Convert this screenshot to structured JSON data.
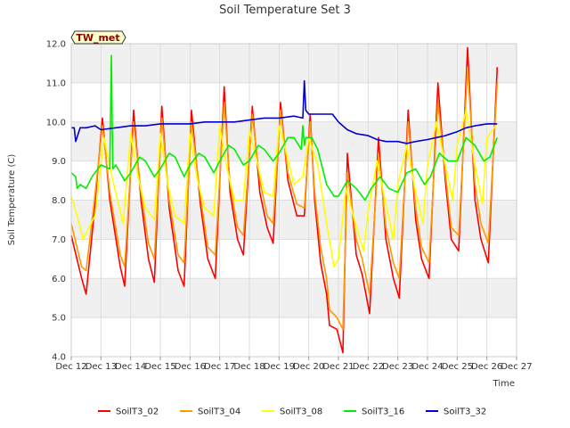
{
  "chart_data": {
    "type": "line",
    "title": "Soil Temperature Set 3",
    "xlabel": "Time",
    "ylabel": "Soil Temperature (C)",
    "tag": "TW_met",
    "ylim": [
      4.0,
      12.0
    ],
    "yticks": [
      "4.0",
      "5.0",
      "6.0",
      "7.0",
      "8.0",
      "9.0",
      "10.0",
      "11.0",
      "12.0"
    ],
    "xlim": [
      "Dec 12",
      "Dec 27"
    ],
    "xticks": [
      "Dec 12",
      "Dec 13",
      "Dec 14",
      "Dec 15",
      "Dec 16",
      "Dec 17",
      "Dec 18",
      "Dec 19",
      "Dec 20",
      "Dec 21",
      "Dec 22",
      "Dec 23",
      "Dec 24",
      "Dec 25",
      "Dec 26",
      "Dec 27"
    ],
    "grid": true,
    "legend_position": "bottom",
    "series": [
      {
        "name": "SoilT3_02",
        "color": "#ff0000",
        "x": [
          12.0,
          12.35,
          12.5,
          12.75,
          13.05,
          13.3,
          13.65,
          13.8,
          14.1,
          14.35,
          14.6,
          14.8,
          15.05,
          15.3,
          15.6,
          15.8,
          16.05,
          16.35,
          16.6,
          16.85,
          17.15,
          17.35,
          17.6,
          17.8,
          18.1,
          18.35,
          18.6,
          18.8,
          19.05,
          19.3,
          19.6,
          19.85,
          20.05,
          20.2,
          20.4,
          20.6,
          20.7,
          20.95,
          21.15,
          21.3,
          21.6,
          21.8,
          22.05,
          22.35,
          22.6,
          22.85,
          23.05,
          23.35,
          23.6,
          23.8,
          24.05,
          24.35,
          24.6,
          24.8,
          25.05,
          25.35,
          25.6,
          25.8,
          26.05,
          26.35
        ],
        "y": [
          7.1,
          6.0,
          5.6,
          7.5,
          10.1,
          8.0,
          6.3,
          5.8,
          10.3,
          8.0,
          6.5,
          5.9,
          10.4,
          7.8,
          6.2,
          5.8,
          10.3,
          7.9,
          6.5,
          6.0,
          10.9,
          8.2,
          7.0,
          6.6,
          10.4,
          8.2,
          7.3,
          6.9,
          10.5,
          8.5,
          7.6,
          7.6,
          10.2,
          8.0,
          6.4,
          5.6,
          4.8,
          4.7,
          4.1,
          9.2,
          6.6,
          6.1,
          5.1,
          9.6,
          7.0,
          6.0,
          5.5,
          10.3,
          7.5,
          6.5,
          6.0,
          11.0,
          8.5,
          7.0,
          6.7,
          11.9,
          8.0,
          7.0,
          6.4,
          11.4
        ]
      },
      {
        "name": "SoilT3_04",
        "color": "#ff9900",
        "x": [
          12.0,
          12.35,
          12.5,
          12.75,
          13.05,
          13.3,
          13.65,
          13.8,
          14.1,
          14.35,
          14.6,
          14.8,
          15.05,
          15.3,
          15.6,
          15.8,
          16.05,
          16.35,
          16.6,
          16.85,
          17.15,
          17.35,
          17.6,
          17.8,
          18.1,
          18.35,
          18.6,
          18.8,
          19.05,
          19.3,
          19.6,
          19.85,
          20.05,
          20.2,
          20.4,
          20.6,
          20.7,
          20.95,
          21.15,
          21.3,
          21.6,
          21.8,
          22.05,
          22.35,
          22.6,
          22.85,
          23.05,
          23.35,
          23.6,
          23.8,
          24.05,
          24.35,
          24.6,
          24.8,
          25.05,
          25.35,
          25.6,
          25.8,
          26.05,
          26.35
        ],
        "y": [
          7.4,
          6.3,
          6.2,
          7.8,
          9.9,
          8.2,
          6.6,
          6.3,
          10.0,
          8.2,
          6.9,
          6.5,
          10.1,
          8.0,
          6.6,
          6.4,
          10.0,
          8.1,
          6.8,
          6.6,
          10.5,
          8.4,
          7.3,
          7.1,
          10.2,
          8.5,
          7.6,
          7.4,
          10.3,
          8.7,
          7.9,
          7.8,
          10.0,
          8.2,
          6.8,
          6.0,
          5.2,
          5.0,
          4.7,
          8.7,
          7.0,
          6.5,
          5.6,
          9.2,
          7.3,
          6.4,
          6.0,
          10.0,
          7.8,
          6.8,
          6.4,
          10.5,
          8.7,
          7.3,
          7.1,
          11.4,
          8.4,
          7.4,
          6.9,
          11.0
        ]
      },
      {
        "name": "SoilT3_08",
        "color": "#ffff00",
        "x": [
          12.0,
          12.2,
          12.4,
          12.6,
          12.8,
          13.1,
          13.4,
          13.75,
          14.0,
          14.25,
          14.5,
          14.8,
          15.0,
          15.25,
          15.5,
          15.8,
          16.0,
          16.25,
          16.5,
          16.8,
          17.0,
          17.25,
          17.5,
          17.8,
          18.0,
          18.25,
          18.5,
          18.8,
          19.0,
          19.25,
          19.5,
          19.8,
          20.0,
          20.3,
          20.6,
          20.85,
          21.0,
          21.25,
          21.5,
          21.85,
          22.0,
          22.3,
          22.6,
          22.85,
          23.0,
          23.3,
          23.6,
          23.85,
          24.0,
          24.3,
          24.6,
          24.85,
          25.0,
          25.3,
          25.6,
          25.85,
          26.0,
          26.3
        ],
        "y": [
          8.1,
          7.6,
          7.0,
          7.3,
          7.6,
          9.6,
          8.5,
          7.4,
          9.7,
          8.6,
          7.8,
          7.5,
          9.7,
          8.4,
          7.6,
          7.4,
          9.7,
          8.5,
          7.8,
          7.6,
          9.9,
          8.8,
          8.0,
          8.0,
          9.8,
          9.0,
          8.2,
          8.1,
          9.9,
          9.2,
          8.4,
          8.6,
          9.6,
          8.9,
          7.4,
          6.3,
          6.5,
          8.3,
          7.6,
          6.7,
          7.7,
          9.0,
          7.9,
          7.0,
          8.4,
          9.4,
          8.2,
          7.4,
          8.9,
          10.0,
          8.9,
          8.0,
          9.4,
          10.3,
          8.9,
          7.9,
          9.6,
          9.9
        ]
      },
      {
        "name": "SoilT3_16",
        "color": "#00ee00",
        "x": [
          12.0,
          12.15,
          12.2,
          12.3,
          12.5,
          12.7,
          13.0,
          13.3,
          13.35,
          13.4,
          13.5,
          13.8,
          14.0,
          14.3,
          14.5,
          14.8,
          15.0,
          15.3,
          15.5,
          15.8,
          16.0,
          16.3,
          16.5,
          16.8,
          17.0,
          17.3,
          17.5,
          17.8,
          18.0,
          18.3,
          18.5,
          18.8,
          19.0,
          19.3,
          19.5,
          19.75,
          19.8,
          19.85,
          19.9,
          20.1,
          20.3,
          20.6,
          20.85,
          21.0,
          21.3,
          21.6,
          21.9,
          22.1,
          22.4,
          22.7,
          23.0,
          23.3,
          23.6,
          23.9,
          24.1,
          24.4,
          24.7,
          25.0,
          25.3,
          25.6,
          25.9,
          26.1,
          26.35
        ],
        "y": [
          8.7,
          8.6,
          8.3,
          8.4,
          8.3,
          8.6,
          8.9,
          8.8,
          11.7,
          8.8,
          8.9,
          8.5,
          8.7,
          9.1,
          9.0,
          8.6,
          8.8,
          9.2,
          9.1,
          8.6,
          8.9,
          9.2,
          9.1,
          8.7,
          9.0,
          9.4,
          9.3,
          8.9,
          9.0,
          9.4,
          9.3,
          9.0,
          9.2,
          9.6,
          9.6,
          9.3,
          9.9,
          9.4,
          9.6,
          9.6,
          9.3,
          8.4,
          8.1,
          8.1,
          8.5,
          8.3,
          8.0,
          8.3,
          8.6,
          8.3,
          8.2,
          8.7,
          8.8,
          8.4,
          8.6,
          9.2,
          9.0,
          9.0,
          9.6,
          9.4,
          9.0,
          9.1,
          9.6
        ]
      },
      {
        "name": "SoilT3_32",
        "color": "#0000cc",
        "x": [
          12.0,
          12.1,
          12.15,
          12.3,
          12.5,
          12.8,
          13.0,
          13.5,
          14.0,
          14.5,
          15.0,
          15.5,
          16.0,
          16.5,
          17.0,
          17.5,
          18.0,
          18.5,
          19.0,
          19.5,
          19.8,
          19.85,
          19.9,
          20.0,
          20.5,
          20.8,
          21.0,
          21.3,
          21.6,
          22.0,
          22.3,
          22.6,
          23.0,
          23.3,
          23.6,
          24.0,
          24.3,
          24.6,
          25.0,
          25.3,
          25.6,
          26.0,
          26.35
        ],
        "y": [
          9.85,
          9.85,
          9.5,
          9.85,
          9.85,
          9.9,
          9.8,
          9.85,
          9.9,
          9.9,
          9.95,
          9.95,
          9.95,
          10.0,
          10.0,
          10.0,
          10.05,
          10.1,
          10.1,
          10.15,
          10.1,
          11.05,
          10.3,
          10.2,
          10.2,
          10.2,
          10.0,
          9.8,
          9.7,
          9.65,
          9.55,
          9.5,
          9.5,
          9.45,
          9.5,
          9.55,
          9.6,
          9.65,
          9.75,
          9.85,
          9.9,
          9.95,
          9.95
        ]
      }
    ]
  }
}
